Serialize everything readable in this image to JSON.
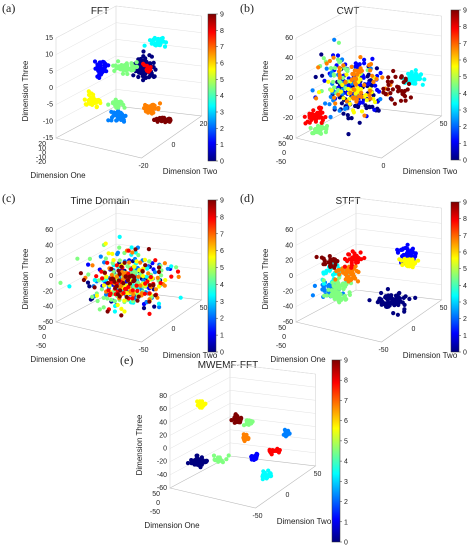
{
  "colormap": [
    "#00007f",
    "#0000ff",
    "#0080ff",
    "#00ffff",
    "#80ff80",
    "#ffff00",
    "#ff8000",
    "#ff0000",
    "#7f0000"
  ],
  "chart_data": [
    {
      "panel": "(a)",
      "title": "FFT",
      "type": "scatter3d",
      "xlabel": "Dimension One",
      "ylabel": "Dimension Two",
      "zlabel": "Dimension Three",
      "x_ticks": [
        "20",
        "10",
        "0",
        "-10",
        "-20"
      ],
      "y_ticks": [
        "-20",
        "0",
        "20"
      ],
      "z_ticks": [
        "15",
        "10",
        "5",
        "0",
        "-5",
        "-10",
        "-15"
      ],
      "colorbar": {
        "range": [
          0,
          9
        ],
        "ticks": [
          "9",
          "8",
          "7",
          "6",
          "5",
          "4",
          "3",
          "2",
          "1",
          "0"
        ]
      },
      "clusters": [
        {
          "label": 0,
          "center": [
            0.62,
            0.26
          ],
          "spread": [
            0.07,
            0.09
          ],
          "n": 70
        },
        {
          "label": 1,
          "center": [
            0.3,
            0.26
          ],
          "spread": [
            0.04,
            0.06
          ],
          "n": 40
        },
        {
          "label": 2,
          "center": [
            0.42,
            0.69
          ],
          "spread": [
            0.05,
            0.05
          ],
          "n": 40
        },
        {
          "label": 3,
          "center": [
            0.72,
            0.04
          ],
          "spread": [
            0.05,
            0.04
          ],
          "n": 35
        },
        {
          "label": 4,
          "center": [
            0.46,
            0.26
          ],
          "spread": [
            0.06,
            0.04
          ],
          "n": 40
        },
        {
          "label": 5,
          "center": [
            0.42,
            0.58
          ],
          "spread": [
            0.04,
            0.03
          ],
          "n": 30
        },
        {
          "label": 6,
          "center": [
            0.24,
            0.55
          ],
          "spread": [
            0.05,
            0.04
          ],
          "n": 35
        },
        {
          "label": 7,
          "center": [
            0.66,
            0.62
          ],
          "spread": [
            0.05,
            0.03
          ],
          "n": 30
        },
        {
          "label": 8,
          "center": [
            0.64,
            0.26
          ],
          "spread": [
            0.03,
            0.03
          ],
          "n": 15
        },
        {
          "label": 9,
          "center": [
            0.76,
            0.72
          ],
          "spread": [
            0.06,
            0.03
          ],
          "n": 30
        }
      ]
    },
    {
      "panel": "(b)",
      "title": "CWT",
      "type": "scatter3d",
      "xlabel": "",
      "ylabel": "Dimension Two",
      "zlabel": "Dimension Three",
      "x_ticks": [
        "50",
        "0",
        "-50"
      ],
      "y_ticks": [
        "0",
        "50"
      ],
      "z_ticks": [
        "60",
        "40",
        "20",
        "0",
        "-20",
        "-40"
      ],
      "colorbar": {
        "range": [
          0,
          9
        ],
        "ticks": [
          "9",
          "8",
          "7",
          "6",
          "5",
          "4",
          "3",
          "2",
          "1",
          "0"
        ]
      },
      "clusters": [
        {
          "label": 0,
          "center": [
            0.4,
            0.45
          ],
          "spread": [
            0.18,
            0.2
          ],
          "n": 90
        },
        {
          "label": 1,
          "center": [
            0.42,
            0.4
          ],
          "spread": [
            0.18,
            0.2
          ],
          "n": 60
        },
        {
          "label": 2,
          "center": [
            0.3,
            0.45
          ],
          "spread": [
            0.15,
            0.18
          ],
          "n": 40
        },
        {
          "label": 3,
          "center": [
            0.82,
            0.35
          ],
          "spread": [
            0.06,
            0.05
          ],
          "n": 40
        },
        {
          "label": 4,
          "center": [
            0.14,
            0.8
          ],
          "spread": [
            0.05,
            0.05
          ],
          "n": 35
        },
        {
          "label": 5,
          "center": [
            0.3,
            0.35
          ],
          "spread": [
            0.15,
            0.18
          ],
          "n": 30
        },
        {
          "label": 6,
          "center": [
            0.4,
            0.45
          ],
          "spread": [
            0.15,
            0.18
          ],
          "n": 40
        },
        {
          "label": 7,
          "center": [
            0.4,
            0.4
          ],
          "spread": [
            0.18,
            0.2
          ],
          "n": 60
        },
        {
          "label": 8,
          "center": [
            0.1,
            0.68
          ],
          "spread": [
            0.06,
            0.06
          ],
          "n": 35
        },
        {
          "label": 9,
          "center": [
            0.7,
            0.45
          ],
          "spread": [
            0.08,
            0.12
          ],
          "n": 35
        }
      ]
    },
    {
      "panel": "(c)",
      "title": "Time Domain",
      "type": "scatter3d",
      "xlabel": "Dimension One",
      "ylabel": "Dimension Two",
      "zlabel": "Dimension Three",
      "x_ticks": [
        "50",
        "0",
        "-50"
      ],
      "y_ticks": [
        "-50",
        "0",
        "50"
      ],
      "z_ticks": [
        "60",
        "40",
        "20",
        "0",
        "-20",
        "-40",
        "-60"
      ],
      "colorbar": {
        "range": [
          0,
          9
        ],
        "ticks": [
          "9",
          "8",
          "7",
          "6",
          "5",
          "4",
          "3",
          "2",
          "1",
          "0"
        ]
      },
      "clusters": [
        {
          "label": 0,
          "center": [
            0.5,
            0.48
          ],
          "spread": [
            0.22,
            0.2
          ],
          "n": 45
        },
        {
          "label": 1,
          "center": [
            0.5,
            0.48
          ],
          "spread": [
            0.22,
            0.2
          ],
          "n": 45
        },
        {
          "label": 2,
          "center": [
            0.5,
            0.48
          ],
          "spread": [
            0.22,
            0.2
          ],
          "n": 45
        },
        {
          "label": 3,
          "center": [
            0.5,
            0.48
          ],
          "spread": [
            0.24,
            0.22
          ],
          "n": 45
        },
        {
          "label": 4,
          "center": [
            0.5,
            0.48
          ],
          "spread": [
            0.22,
            0.2
          ],
          "n": 45
        },
        {
          "label": 5,
          "center": [
            0.5,
            0.48
          ],
          "spread": [
            0.22,
            0.2
          ],
          "n": 45
        },
        {
          "label": 6,
          "center": [
            0.5,
            0.48
          ],
          "spread": [
            0.22,
            0.2
          ],
          "n": 45
        },
        {
          "label": 7,
          "center": [
            0.5,
            0.48
          ],
          "spread": [
            0.22,
            0.2
          ],
          "n": 45
        },
        {
          "label": 8,
          "center": [
            0.5,
            0.48
          ],
          "spread": [
            0.22,
            0.2
          ],
          "n": 45
        },
        {
          "label": 9,
          "center": [
            0.5,
            0.48
          ],
          "spread": [
            0.22,
            0.2
          ],
          "n": 45
        }
      ]
    },
    {
      "panel": "(d)",
      "title": "STFT",
      "type": "scatter3d",
      "xlabel": "Dimension One",
      "ylabel": "Dimension Two",
      "zlabel": "Dimension Three",
      "x_ticks": [
        "50",
        "0",
        "-50"
      ],
      "y_ticks": [
        "-50",
        "0",
        "50"
      ],
      "z_ticks": [
        "60",
        "40",
        "20",
        "0",
        "-20",
        "-40",
        "-60"
      ],
      "colorbar": {
        "range": [
          0,
          9
        ],
        "ticks": [
          "9",
          "8",
          "7",
          "6",
          "5",
          "4",
          "3",
          "2",
          "1",
          "0"
        ]
      },
      "clusters": [
        {
          "label": 0,
          "center": [
            0.66,
            0.66
          ],
          "spread": [
            0.1,
            0.08
          ],
          "n": 70
        },
        {
          "label": 1,
          "center": [
            0.78,
            0.22
          ],
          "spread": [
            0.05,
            0.06
          ],
          "n": 35
        },
        {
          "label": 2,
          "center": [
            0.22,
            0.57
          ],
          "spread": [
            0.07,
            0.06
          ],
          "n": 40
        },
        {
          "label": 3,
          "center": [
            0.25,
            0.4
          ],
          "spread": [
            0.08,
            0.1
          ],
          "n": 40
        },
        {
          "label": 4,
          "center": [
            0.28,
            0.52
          ],
          "spread": [
            0.07,
            0.05
          ],
          "n": 25
        },
        {
          "label": 5,
          "center": [
            0.26,
            0.62
          ],
          "spread": [
            0.06,
            0.05
          ],
          "n": 35
        },
        {
          "label": 6,
          "center": [
            0.78,
            0.3
          ],
          "spread": [
            0.05,
            0.04
          ],
          "n": 30
        },
        {
          "label": 7,
          "center": [
            0.35,
            0.4
          ],
          "spread": [
            0.06,
            0.07
          ],
          "n": 40
        },
        {
          "label": 8,
          "center": [
            0.4,
            0.28
          ],
          "spread": [
            0.05,
            0.06
          ],
          "n": 35
        },
        {
          "label": 9,
          "center": [
            0.22,
            0.3
          ],
          "spread": [
            0.05,
            0.05
          ],
          "n": 25
        }
      ]
    },
    {
      "panel": "(e)",
      "title": "MWEMF-FFT",
      "type": "scatter3d",
      "xlabel": "Dimension One",
      "ylabel": "Dimension Two",
      "zlabel": "Dimension Three",
      "x_ticks": [
        "50",
        "0",
        "-50"
      ],
      "y_ticks": [
        "-50",
        "0",
        "50"
      ],
      "z_ticks": [
        "80",
        "60",
        "40",
        "20",
        "0",
        "-20",
        "-40",
        "-60"
      ],
      "colorbar": {
        "range": [
          0,
          9
        ],
        "ticks": [
          "9",
          "8",
          "7",
          "6",
          "5",
          "4",
          "3",
          "2",
          "1",
          "0"
        ]
      },
      "clusters": [
        {
          "label": 0,
          "center": [
            0.18,
            0.62
          ],
          "spread": [
            0.05,
            0.04
          ],
          "n": 45
        },
        {
          "label": 1,
          "center": [
            0.58,
            0.58
          ],
          "spread": [
            0.03,
            0.03
          ],
          "n": 25
        },
        {
          "label": 2,
          "center": [
            0.82,
            0.35
          ],
          "spread": [
            0.02,
            0.03
          ],
          "n": 20
        },
        {
          "label": 3,
          "center": [
            0.68,
            0.75
          ],
          "spread": [
            0.03,
            0.03
          ],
          "n": 25
        },
        {
          "label": 4,
          "center": [
            0.33,
            0.6
          ],
          "spread": [
            0.04,
            0.03
          ],
          "n": 20
        },
        {
          "label": 5,
          "center": [
            0.55,
            0.25
          ],
          "spread": [
            0.02,
            0.02
          ],
          "n": 20
        },
        {
          "label": 6,
          "center": [
            0.2,
            0.08
          ],
          "spread": [
            0.03,
            0.03
          ],
          "n": 25
        },
        {
          "label": 7,
          "center": [
            0.52,
            0.4
          ],
          "spread": [
            0.02,
            0.03
          ],
          "n": 20
        },
        {
          "label": 8,
          "center": [
            0.72,
            0.52
          ],
          "spread": [
            0.03,
            0.02
          ],
          "n": 20
        },
        {
          "label": 9,
          "center": [
            0.46,
            0.22
          ],
          "spread": [
            0.03,
            0.03
          ],
          "n": 25
        }
      ]
    }
  ]
}
